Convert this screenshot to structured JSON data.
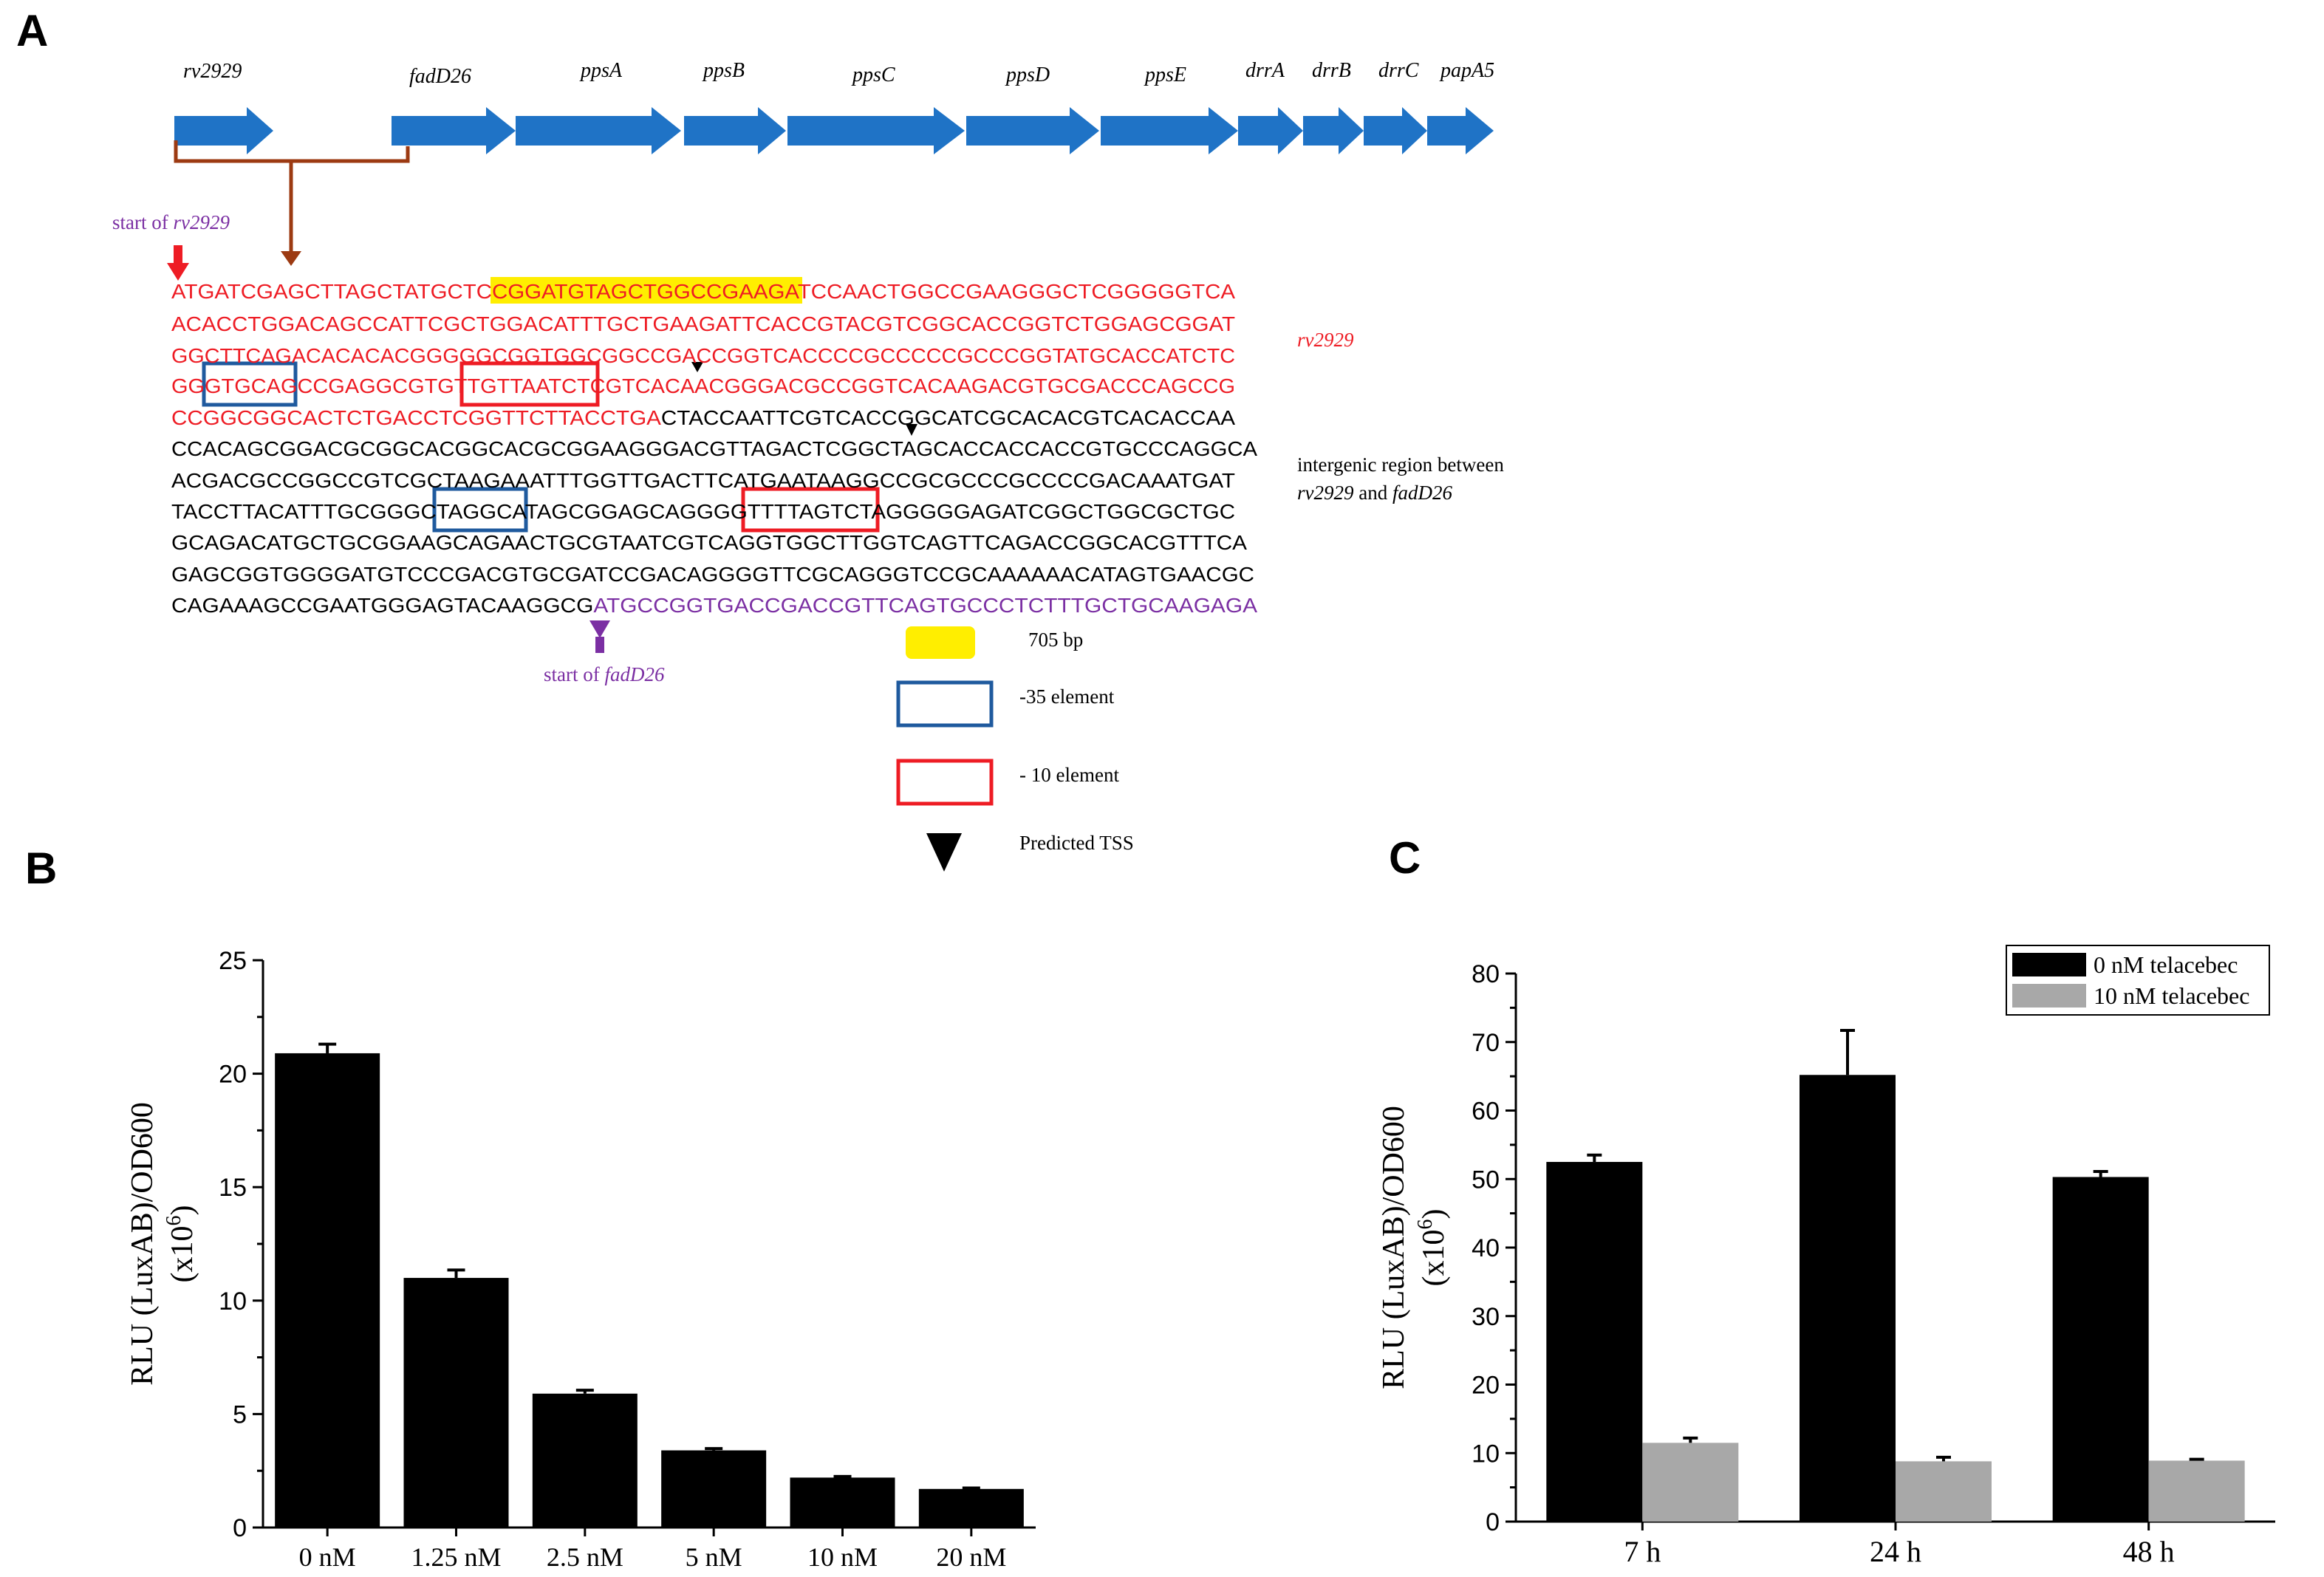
{
  "panels": {
    "a": "A",
    "b": "B",
    "c": "C"
  },
  "genes": [
    "rv2929",
    "fadD26",
    "ppsA",
    "ppsB",
    "ppsC",
    "ppsD",
    "ppsE",
    "drrA",
    "drrB",
    "drrC",
    "papA5"
  ],
  "sequence": {
    "start_rv_prefix": "start of ",
    "start_rv_gene": "rv2929",
    "start_fad_prefix": "start of ",
    "start_fad_gene": "fadD26",
    "rv_label": "rv2929",
    "intergenic_label_1": "intergenic region between",
    "intergenic_label_2_gene1": "rv2929",
    "intergenic_label_2_and": " and ",
    "intergenic_label_2_gene2": "fadD26",
    "l1a": "ATGATCGAGCTTAGCTATGCTC",
    "l1b": "CGGATGTAGCTGGCCGAAGA",
    "l1c": "TCCAACTGGCCGAAGGGCTCGGGGGTCA",
    "l2": "ACACCTGGACAGCCATTCGCTGGACATTTGCTGAAGATTCACCGTACGTCGGCACCGGTCTGGAGCGGAT",
    "l3": "GGCTTCAGACACACACGGGGGCGGTGGCGGCCGACCGGTCACCCCGCCCCCGCCCGGTATGCACCATCTC",
    "l4": "GGGTGCAGCCGAGGCGTGTTGTTAATCTCGTCACAACGGGACGCCGGTCACAAGACGTGCGACCCAGCCG",
    "l5a": "CCGGCGGCACTCTGACCTCGGTTCTTACCTGA",
    "l5b": "CTACCAATTCGTCACCGGCATCGCACACGTCACACCAA",
    "l6": "CCACAGCGGACGCGGCACGGCACGCGGAAGGGACGTTAGACTCGGCTAGCACCACCACCGTGCCCAGGCA",
    "l7": "ACGACGCCGGCCGTCGCTAAGAAATTTGGTTGACTTCATGAATAAGGCCGCGCCCGCCCCGACAAATGAT",
    "l8": "TACCTTACATTTGCGGGCTAGGCATAGCGGAGCAGGGGTTTTAGTCTAGGGGGAGATCGGCTGGCGCTGC",
    "l9": "GCAGACATGCTGCGGAAGCAGAACTGCGTAATCGTCAGGTGGCTTGGTCAGTTCAGACCGGCACGTTTCA",
    "l10": "GAGCGGTGGGGATGTCCCGACGTGCGATCCGACAGGGGTTCGCAGGGTCCGCAAAAAACATAGTGAACGC",
    "l11a": "CAGAAAGCCGAATGGGAGTACAAGGCG",
    "l11b": "ATGCCGGTGACCGACCGTTCAGTGCCCTCTTTGCTGCAAGAGA"
  },
  "legend_a": {
    "bp": "705 bp",
    "m35": "-35 element",
    "m10": "- 10 element",
    "tss": "Predicted TSS"
  },
  "colors": {
    "gene_arrow": "#1f73c6",
    "bracket": "#9c3a12",
    "rv_seq": "#ee1c24",
    "fad_seq": "#7b2fa3",
    "highlight": "#ffee00",
    "box35": "#1f5a9e",
    "box10": "#ee1c24"
  },
  "chart_data": [
    {
      "type": "bar",
      "title": "",
      "categories": [
        "0 nM",
        "1.25 nM",
        "2.5 nM",
        "5 nM",
        "10 nM",
        "20 nM"
      ],
      "values": [
        20.9,
        11.0,
        5.9,
        3.4,
        2.2,
        1.7
      ],
      "errors": [
        0.4,
        0.35,
        0.15,
        0.08,
        0.05,
        0.04
      ],
      "ylabel": "RLU (LuxAB)/OD600",
      "ylabel_unit_base": "(x10",
      "ylabel_unit_exp": "6",
      "ylabel_unit_close": ")",
      "ylim": [
        0,
        25
      ],
      "yticks": [
        "0",
        "5",
        "10",
        "15",
        "20",
        "25"
      ],
      "color": "#000000"
    },
    {
      "type": "bar",
      "title": "",
      "categories": [
        "7 h",
        "24 h",
        "48 h"
      ],
      "series": [
        {
          "name": "0 nM telacebec",
          "values": [
            52.5,
            65.2,
            50.3
          ],
          "errors": [
            1.0,
            6.5,
            0.8
          ],
          "color": "#000000"
        },
        {
          "name": "10 nM telacebec",
          "values": [
            11.5,
            8.8,
            8.9
          ],
          "errors": [
            0.7,
            0.6,
            0.2
          ],
          "color": "#a8a8a8"
        }
      ],
      "ylabel": "RLU (LuxAB)/OD600",
      "ylabel_unit_base": "(x10",
      "ylabel_unit_exp": "6",
      "ylabel_unit_close": ")",
      "ylim": [
        0,
        80
      ],
      "yticks": [
        "0",
        "10",
        "20",
        "30",
        "40",
        "50",
        "60",
        "70",
        "80"
      ],
      "legend": "top-right"
    }
  ]
}
